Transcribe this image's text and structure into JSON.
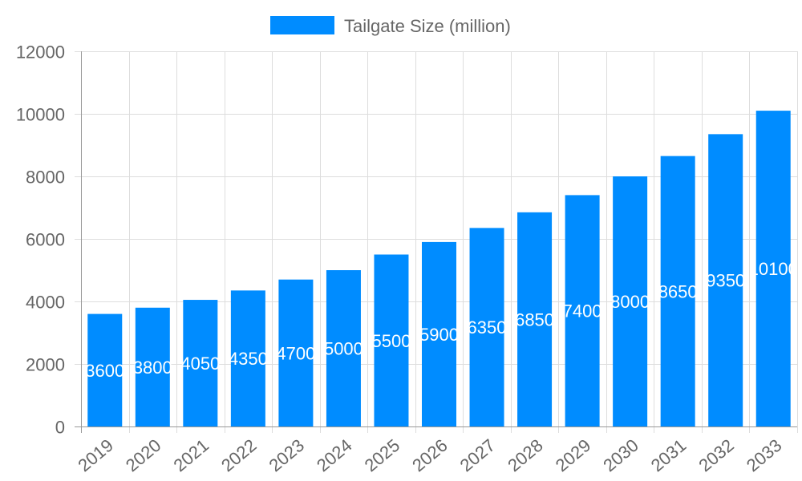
{
  "chart_data": {
    "type": "bar",
    "categories": [
      "2019",
      "2020",
      "2021",
      "2022",
      "2023",
      "2024",
      "2025",
      "2026",
      "2027",
      "2028",
      "2029",
      "2030",
      "2031",
      "2032",
      "2033"
    ],
    "series": [
      {
        "name": "Tailgate Size (million)",
        "values": [
          3600,
          3800,
          4050,
          4350,
          4700,
          5000,
          5500,
          5900,
          6350,
          6850,
          7400,
          8000,
          8650,
          9350,
          10100
        ],
        "color": "#008cff"
      }
    ],
    "ylim": [
      0,
      12000
    ],
    "yticks": [
      "0",
      "2000",
      "4000",
      "6000",
      "8000",
      "10000",
      "12000"
    ],
    "grid": true,
    "legend_position": "top",
    "data_labels": true
  }
}
